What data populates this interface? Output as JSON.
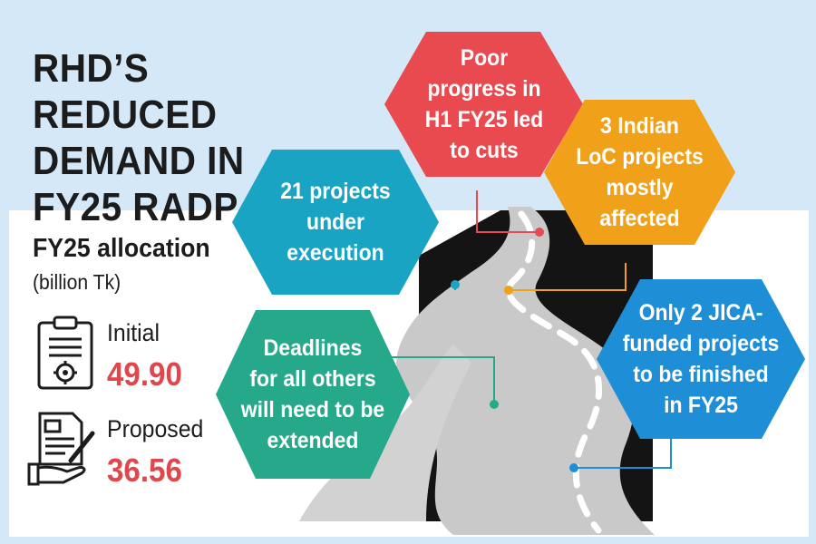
{
  "title": "RHD’S REDUCED\nDEMAND IN\nFY25 RADP",
  "allocation": {
    "heading": "FY25 allocation",
    "unit": "(billion Tk)",
    "initial": {
      "label": "Initial",
      "value": "49.90",
      "icon": "clipboard-gear-icon"
    },
    "proposed": {
      "label": "Proposed",
      "value": "36.56",
      "icon": "document-hand-pen-icon"
    }
  },
  "callouts": [
    {
      "id": "projects",
      "text": "21 projects\nunder\nexecution",
      "color": "#1aa4c4"
    },
    {
      "id": "progress",
      "text": "Poor\nprogress in\nH1 FY25 led\nto cuts",
      "color": "#e84a4f"
    },
    {
      "id": "indian",
      "text": "3 Indian\nLoC projects\nmostly\naffected",
      "color": "#f0a019"
    },
    {
      "id": "deadlines",
      "text": "Deadlines\nfor all others\nwill need to be\nextended",
      "color": "#26a98a"
    },
    {
      "id": "jica",
      "text": "Only 2 JICA-\nfunded projects\nto be finished\nin FY25",
      "color": "#1e8fd6"
    }
  ]
}
